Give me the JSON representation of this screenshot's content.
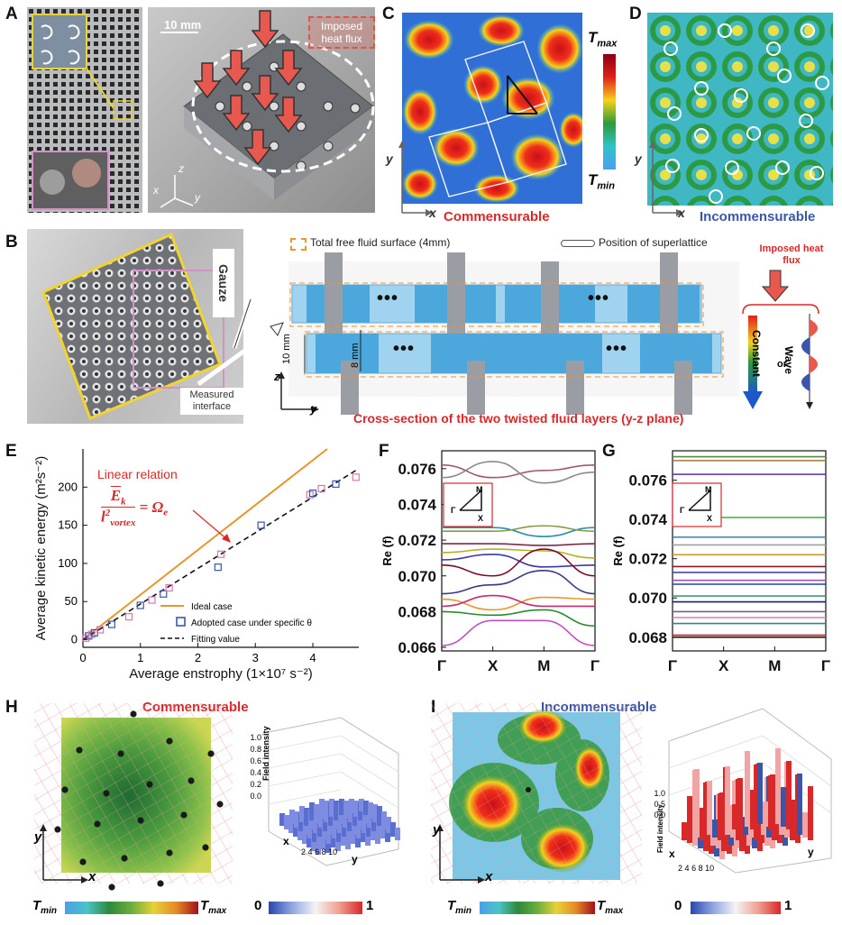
{
  "panels": {
    "A": {
      "letter": "A",
      "scale_bar": "10 mm",
      "imposed_label": "Imposed heat flux",
      "axis_z": "z",
      "axis_x": "x",
      "axis_y": "y"
    },
    "B": {
      "letter": "B",
      "gauze": "Gauze",
      "measured_interface": "Measured interface",
      "legend_free_surface": "Total free fluid surface (4mm)",
      "legend_superlattice": "Position of superlattice",
      "imposed_heat_flux": "Imposed heat flux",
      "dim_10": "10 mm",
      "dim_8": "8 mm",
      "axis_z": "z",
      "axis_y": "y",
      "caption": "Cross-section of the two twisted fluid layers (y-z plane)",
      "constant": "Constant",
      "or": "or",
      "wave": "Wave",
      "dots": "•••"
    },
    "C": {
      "letter": "C",
      "label": "Commensurable",
      "tmax": "T",
      "tmax_sub": "max",
      "tmin": "T",
      "tmin_sub": "min",
      "axis_x": "x",
      "axis_y": "y"
    },
    "D": {
      "letter": "D",
      "label": "Incommensurable",
      "axis_x": "x",
      "axis_y": "y"
    },
    "E": {
      "letter": "E",
      "annotation": "Linear relation",
      "eq_num": "E",
      "eq_num_sub": "k",
      "eq_den": "l",
      "eq_den_sub": "vortex",
      "eq_den_sup": "2",
      "eq_rhs": "= Ω",
      "eq_rhs_sub": "e",
      "legend_ideal": "Ideal case",
      "legend_adopted": "Adopted case under specific θ",
      "legend_fit": "Fitting value"
    },
    "F": {
      "letter": "F",
      "inset_M": "M",
      "inset_G": "Γ",
      "inset_X": "X"
    },
    "G": {
      "letter": "G",
      "inset_M": "M",
      "inset_G": "Γ",
      "inset_X": "X"
    },
    "H": {
      "letter": "H",
      "label": "Commensurable",
      "axis_x": "x",
      "axis_y": "y",
      "cb_tmin": "T",
      "cb_tmin_sub": "min",
      "cb_tmax": "T",
      "cb_tmax_sub": "max",
      "cb_0": "0",
      "cb_1": "1",
      "zlabel": "Field intensity",
      "z_ticks": [
        "1.0",
        "0.8",
        "0.6",
        "0.4",
        "0.2",
        "0.0"
      ],
      "x3d": "x",
      "y3d": "y",
      "ticks3d": [
        "2",
        "4",
        "6",
        "8",
        "10"
      ]
    },
    "I": {
      "letter": "I",
      "label": "Incommensurable",
      "axis_x": "x",
      "axis_y": "y",
      "cb_tmin": "T",
      "cb_tmin_sub": "min",
      "cb_tmax": "T",
      "cb_tmax_sub": "max",
      "cb_0": "0",
      "cb_1": "1",
      "zlabel": "Field intensity",
      "z_ticks": [
        "1.0",
        "0.5",
        "0.0"
      ],
      "x3d": "x",
      "y3d": "y",
      "ticks3d": [
        "2",
        "4",
        "6",
        "8",
        "10"
      ]
    }
  },
  "colors": {
    "red": "#d8282a",
    "blue": "#3a56a8",
    "orange": "#e8962e"
  },
  "chart_data": [
    {
      "type": "scatter",
      "panel": "E",
      "xlabel": "Average enstrophy (1×10⁷ s⁻²)",
      "ylabel": "Average kinetic energy (m²s⁻²)",
      "xlim": [
        0,
        4.8
      ],
      "ylim": [
        -10,
        250
      ],
      "xticks": [
        "0",
        "1",
        "2",
        "3",
        "4"
      ],
      "yticks": [
        "0",
        "50",
        "100",
        "150",
        "200"
      ],
      "series": [
        {
          "name": "Ideal case",
          "kind": "line",
          "x": [
            0,
            4.25
          ],
          "y": [
            0,
            250
          ]
        },
        {
          "name": "Adopted case under specific θ",
          "kind": "markers",
          "x": [
            0.05,
            0.1,
            0.15,
            0.2,
            0.3,
            0.5,
            0.8,
            1.0,
            1.2,
            1.4,
            1.5,
            2.35,
            2.4,
            3.1,
            3.95,
            4.0,
            4.15,
            4.4,
            4.75
          ],
          "y": [
            2,
            5,
            7,
            9,
            13,
            20,
            30,
            45,
            52,
            60,
            68,
            95,
            112,
            150,
            190,
            192,
            198,
            204,
            213
          ]
        },
        {
          "name": "Fitting value",
          "kind": "line",
          "x": [
            0,
            4.75
          ],
          "y": [
            0,
            222
          ]
        }
      ]
    },
    {
      "type": "line",
      "panel": "F",
      "ylabel": "Re (f)",
      "categories": [
        "Γ",
        "X",
        "M",
        "Γ"
      ],
      "yticks": [
        "0.066",
        "0.068",
        "0.070",
        "0.072",
        "0.074",
        "0.076"
      ],
      "ylim": [
        0.0658,
        0.077
      ],
      "series": [
        {
          "values": [
            0.0762,
            0.0755,
            0.0759,
            0.0762
          ]
        },
        {
          "values": [
            0.0755,
            0.0764,
            0.0752,
            0.0758
          ]
        },
        {
          "values": [
            0.0727,
            0.0727,
            0.0722,
            0.0727
          ]
        },
        {
          "values": [
            0.0725,
            0.0725,
            0.0728,
            0.0725
          ]
        },
        {
          "values": [
            0.0718,
            0.0718,
            0.0717,
            0.0718
          ]
        },
        {
          "values": [
            0.0713,
            0.0715,
            0.0714,
            0.071
          ]
        },
        {
          "values": [
            0.0709,
            0.0712,
            0.0705,
            0.0706
          ]
        },
        {
          "values": [
            0.0706,
            0.07,
            0.0715,
            0.07
          ]
        },
        {
          "values": [
            0.069,
            0.0695,
            0.0703,
            0.069
          ]
        },
        {
          "values": [
            0.0687,
            0.0681,
            0.0688,
            0.0687
          ]
        },
        {
          "values": [
            0.0683,
            0.0689,
            0.0683,
            0.0683
          ]
        },
        {
          "values": [
            0.068,
            0.0678,
            0.0681,
            0.0672
          ]
        },
        {
          "values": [
            0.0661,
            0.0675,
            0.0675,
            0.0661
          ]
        }
      ]
    },
    {
      "type": "line",
      "panel": "G",
      "ylabel": "Re (f)",
      "categories": [
        "Γ",
        "X",
        "M",
        "Γ"
      ],
      "yticks": [
        "0.068",
        "0.070",
        "0.072",
        "0.074",
        "0.076"
      ],
      "ylim": [
        0.0673,
        0.0775
      ],
      "series": [
        {
          "values": [
            0.0772,
            0.0772,
            0.0772,
            0.0772
          ]
        },
        {
          "values": [
            0.077,
            0.077,
            0.077,
            0.077
          ]
        },
        {
          "values": [
            0.0763,
            0.0763,
            0.0763,
            0.0763
          ]
        },
        {
          "values": [
            0.0741,
            0.0741,
            0.0741,
            0.0741
          ]
        },
        {
          "values": [
            0.0731,
            0.0731,
            0.0731,
            0.0731
          ]
        },
        {
          "values": [
            0.0727,
            0.0727,
            0.0727,
            0.0727
          ]
        },
        {
          "values": [
            0.0722,
            0.0722,
            0.0722,
            0.0722
          ]
        },
        {
          "values": [
            0.0716,
            0.0716,
            0.0716,
            0.0716
          ]
        },
        {
          "values": [
            0.0713,
            0.0713,
            0.0713,
            0.0713
          ]
        },
        {
          "values": [
            0.0709,
            0.0709,
            0.0709,
            0.0709
          ]
        },
        {
          "values": [
            0.0707,
            0.0707,
            0.0707,
            0.0707
          ]
        },
        {
          "values": [
            0.0701,
            0.0701,
            0.0701,
            0.0701
          ]
        },
        {
          "values": [
            0.0698,
            0.0698,
            0.0698,
            0.0698
          ]
        },
        {
          "values": [
            0.0693,
            0.0693,
            0.0693,
            0.0693
          ]
        },
        {
          "values": [
            0.069,
            0.069,
            0.069,
            0.069
          ]
        },
        {
          "values": [
            0.0687,
            0.0687,
            0.0687,
            0.0687
          ]
        },
        {
          "values": [
            0.0681,
            0.0681,
            0.0681,
            0.0681
          ]
        },
        {
          "values": [
            0.068,
            0.068,
            0.068,
            0.068
          ]
        }
      ]
    }
  ]
}
